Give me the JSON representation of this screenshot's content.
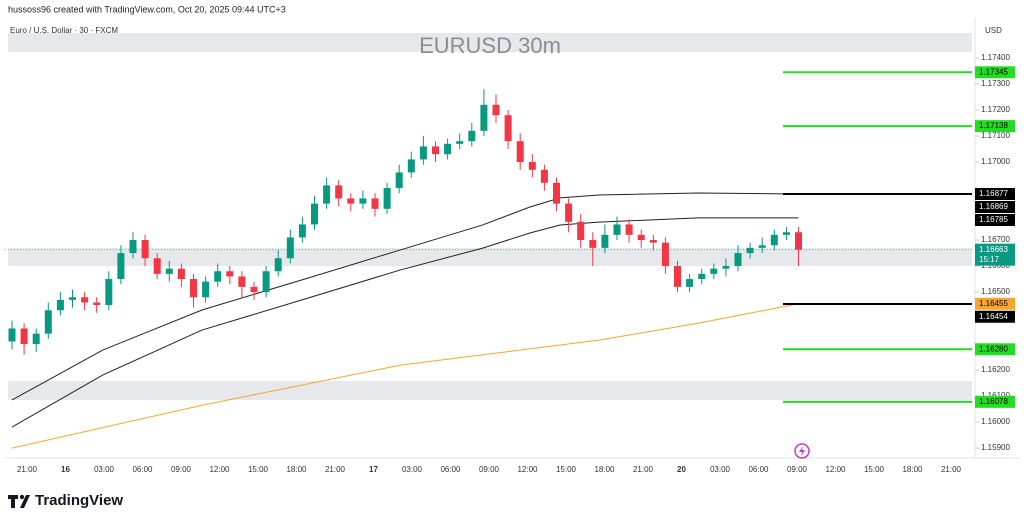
{
  "header": {
    "credit": "hussoss96 created with TradingView.com, Oct 20, 2025 09:44 UTC+3",
    "symbol": "Euro / U.S. Dollar · 30 · FXCM",
    "currency": "USD"
  },
  "footer": {
    "brand": "TradingView"
  },
  "chart_data": {
    "type": "candlestick",
    "title": "EURUSD 30m",
    "ylim": [
      1.15862,
      1.17546
    ],
    "yticks": [
      {
        "value": 1.174,
        "label": "1.17400"
      },
      {
        "value": 1.173,
        "label": "1.17300"
      },
      {
        "value": 1.172,
        "label": "1.17200"
      },
      {
        "value": 1.171,
        "label": "1.17100"
      },
      {
        "value": 1.17,
        "label": "1.17000"
      },
      {
        "value": 1.167,
        "label": "1.16700"
      },
      {
        "value": 1.166,
        "label": "1.16600"
      },
      {
        "value": 1.165,
        "label": "1.16500"
      },
      {
        "value": 1.162,
        "label": "1.16200"
      },
      {
        "value": 1.161,
        "label": "1.16100"
      },
      {
        "value": 1.16,
        "label": "1.16000"
      },
      {
        "value": 1.159,
        "label": "1.15900"
      }
    ],
    "time_labels": [
      "21:00",
      "16",
      "03:00",
      "06:00",
      "09:00",
      "12:00",
      "15:00",
      "18:00",
      "21:00",
      "17",
      "03:00",
      "06:00",
      "09:00",
      "12:00",
      "15:00",
      "18:00",
      "21:00",
      "20",
      "03:00",
      "06:00",
      "09:00",
      "12:00",
      "15:00",
      "18:00",
      "21:00"
    ],
    "up_color": "#089981",
    "down_color": "#f23645",
    "open": [
      1.1631,
      1.1636,
      1.163,
      1.1634,
      1.1643,
      1.1647,
      1.1648,
      1.1646,
      1.1645,
      1.1655,
      1.1665,
      1.167,
      1.1663,
      1.1657,
      1.1659,
      1.1655,
      1.1648,
      1.1654,
      1.1658,
      1.1656,
      1.1652,
      1.165,
      1.1658,
      1.1663,
      1.1671,
      1.1676,
      1.1684,
      1.1691,
      1.1686,
      1.1684,
      1.1686,
      1.1682,
      1.169,
      1.1696,
      1.1701,
      1.1706,
      1.1703,
      1.1707,
      1.1708,
      1.1712,
      1.1722,
      1.1718,
      1.1708,
      1.17,
      1.1697,
      1.1692,
      1.1684,
      1.1677,
      1.167,
      1.1667,
      1.1672,
      1.1676,
      1.1672,
      1.167,
      1.1669,
      1.166,
      1.1652,
      1.1655,
      1.1657,
      1.1659,
      1.166,
      1.1665,
      1.1667,
      1.1668,
      1.1672,
      1.1673
    ],
    "high": [
      1.1639,
      1.1638,
      1.1636,
      1.1646,
      1.165,
      1.1651,
      1.165,
      1.1648,
      1.1658,
      1.1668,
      1.1673,
      1.1672,
      1.1665,
      1.1662,
      1.1661,
      1.1657,
      1.1656,
      1.1661,
      1.166,
      1.1658,
      1.1654,
      1.166,
      1.1666,
      1.1674,
      1.1679,
      1.1687,
      1.1694,
      1.1693,
      1.1688,
      1.1689,
      1.1688,
      1.1692,
      1.1699,
      1.1704,
      1.171,
      1.1708,
      1.1709,
      1.1711,
      1.1715,
      1.1728,
      1.1726,
      1.172,
      1.1711,
      1.1703,
      1.1699,
      1.1694,
      1.1686,
      1.168,
      1.1673,
      1.1676,
      1.1679,
      1.1678,
      1.1674,
      1.1672,
      1.1671,
      1.1662,
      1.1657,
      1.1659,
      1.1661,
      1.1663,
      1.1668,
      1.1669,
      1.1671,
      1.1674,
      1.1675,
      1.1675
    ],
    "low": [
      1.1628,
      1.1626,
      1.1627,
      1.1632,
      1.1641,
      1.1644,
      1.1643,
      1.1642,
      1.1643,
      1.1653,
      1.1663,
      1.166,
      1.1655,
      1.1654,
      1.1652,
      1.1644,
      1.1646,
      1.1652,
      1.1653,
      1.1648,
      1.1647,
      1.1648,
      1.1656,
      1.1661,
      1.1669,
      1.1674,
      1.1682,
      1.1683,
      1.1681,
      1.1682,
      1.1679,
      1.168,
      1.1688,
      1.1694,
      1.1699,
      1.17,
      1.1701,
      1.1705,
      1.1706,
      1.171,
      1.1715,
      1.1705,
      1.1697,
      1.1694,
      1.1689,
      1.1681,
      1.1673,
      1.1667,
      1.166,
      1.1665,
      1.167,
      1.1669,
      1.1667,
      1.1666,
      1.1657,
      1.165,
      1.165,
      1.1653,
      1.1655,
      1.1656,
      1.1658,
      1.1663,
      1.1665,
      1.1666,
      1.167,
      1.166
    ],
    "close": [
      1.1636,
      1.163,
      1.1634,
      1.1643,
      1.1647,
      1.1648,
      1.1646,
      1.1645,
      1.1655,
      1.1665,
      1.167,
      1.1663,
      1.1657,
      1.1659,
      1.1655,
      1.1648,
      1.1654,
      1.1658,
      1.1656,
      1.1652,
      1.165,
      1.1658,
      1.1663,
      1.1671,
      1.1676,
      1.1684,
      1.1691,
      1.1686,
      1.1684,
      1.1686,
      1.1682,
      1.169,
      1.1696,
      1.1701,
      1.1706,
      1.1703,
      1.1707,
      1.1708,
      1.1712,
      1.1722,
      1.1718,
      1.1708,
      1.17,
      1.1697,
      1.1692,
      1.1684,
      1.1677,
      1.167,
      1.1667,
      1.1672,
      1.1676,
      1.1672,
      1.167,
      1.1669,
      1.166,
      1.1652,
      1.1655,
      1.1657,
      1.1659,
      1.166,
      1.1665,
      1.1667,
      1.1668,
      1.1672,
      1.1673,
      1.16663
    ],
    "lines": [
      {
        "color": "#222222",
        "x": [
          0,
          7.5,
          15.7,
          23.9,
          32.1,
          38.9,
          42.8,
          45.3,
          48.5,
          56.7,
          65
        ],
        "values": [
          1.16085,
          1.16277,
          1.16431,
          1.16546,
          1.16662,
          1.16758,
          1.16827,
          1.16862,
          1.16873,
          1.16881,
          1.16877
        ]
      },
      {
        "color": "#222222",
        "x": [
          0,
          7.5,
          15.7,
          23.9,
          32.1,
          38.9,
          42.8,
          45.3,
          48.5,
          56.7,
          65
        ],
        "values": [
          1.15981,
          1.16181,
          1.16354,
          1.16469,
          1.16585,
          1.16669,
          1.16727,
          1.16758,
          1.16769,
          1.16785,
          1.16785
        ]
      },
      {
        "color": "#f7a630",
        "x": [
          0,
          15.7,
          32.1,
          48.5,
          56.7,
          65
        ],
        "values": [
          1.159,
          1.16065,
          1.16219,
          1.16315,
          1.1638,
          1.16455
        ]
      }
    ],
    "zones": [
      [
        1.17423,
        1.17496
      ],
      [
        1.166,
        1.16669
      ],
      [
        1.16085,
        1.16158
      ]
    ],
    "price_labels": [
      {
        "value": 1.17345,
        "bg": "#22dd22",
        "fg": "#000000",
        "line": true
      },
      {
        "value": 1.17138,
        "bg": "#22dd22",
        "fg": "#000000",
        "line": true
      },
      {
        "value": 1.16877,
        "bg": "#000000",
        "fg": "#ffffff",
        "line": true
      },
      {
        "value": 1.16869,
        "bg": "#000000",
        "fg": "#ffffff",
        "line": false
      },
      {
        "value": 1.16785,
        "bg": "#000000",
        "fg": "#ffffff",
        "line": false
      },
      {
        "value": 1.16663,
        "bg": "#089981",
        "fg": "#ffffff",
        "line": false,
        "countdown": "15:17"
      },
      {
        "value": 1.16455,
        "bg": "#f7a630",
        "fg": "#000000",
        "line": false
      },
      {
        "value": 1.16454,
        "bg": "#000000",
        "fg": "#ffffff",
        "line": true
      },
      {
        "value": 1.1628,
        "label": "1.16280",
        "bg": "#22dd22",
        "fg": "#000000",
        "line": true
      },
      {
        "value": 1.16078,
        "bg": "#22dd22",
        "fg": "#000000",
        "line": true
      }
    ]
  }
}
